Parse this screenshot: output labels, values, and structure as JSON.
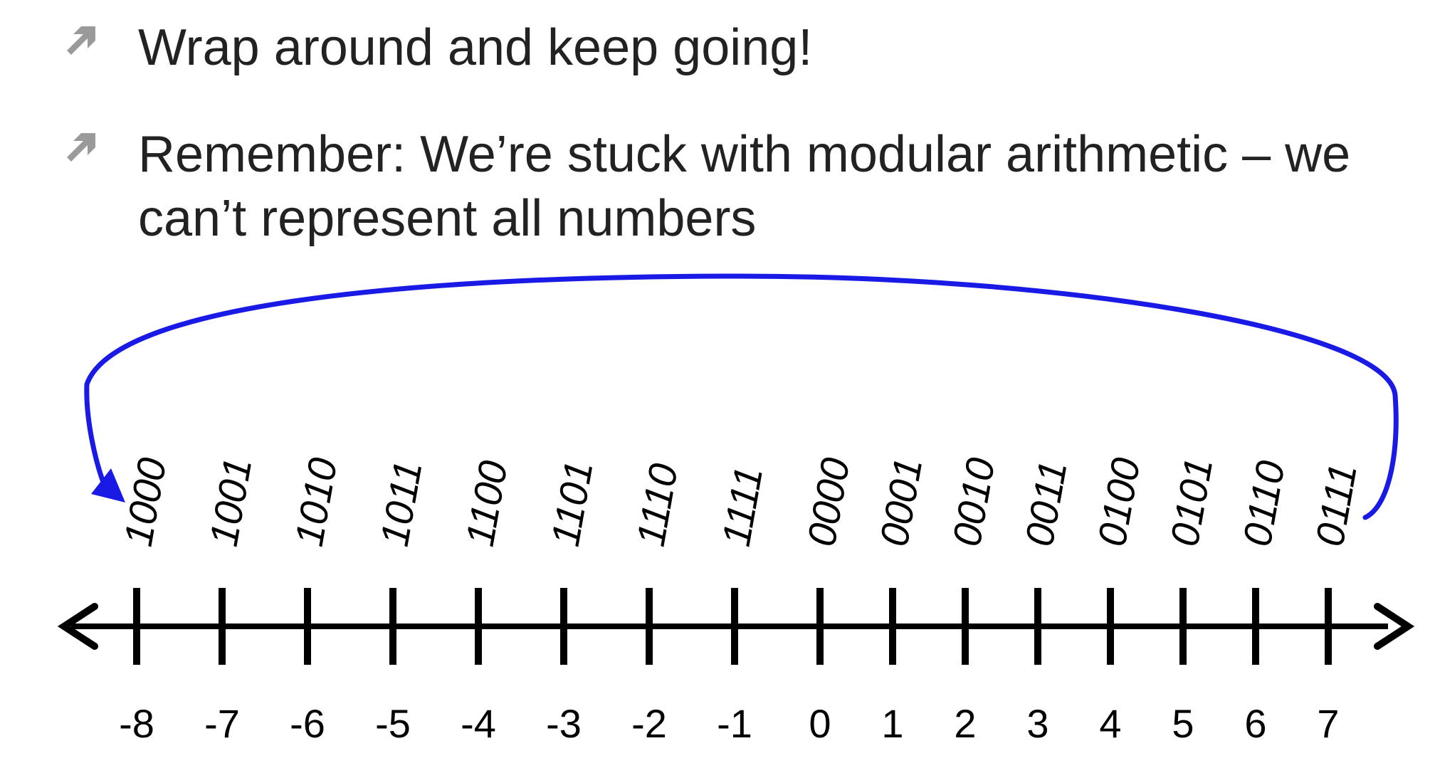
{
  "bullets": [
    {
      "text": "Wrap around and keep going!",
      "icon": "diagonal-arrow-icon"
    },
    {
      "text": "Remember: We’re stuck with modular arithmetic – we\ncan’t represent all numbers",
      "icon": "diagonal-arrow-icon"
    }
  ],
  "colors": {
    "bullet_icon": "#9a9a9a",
    "text": "#222222",
    "wrap_arrow": "#1a1ae6",
    "number_line": "#000000"
  },
  "number_line": {
    "ticks": [
      {
        "value": "-8",
        "binary": "1000"
      },
      {
        "value": "-7",
        "binary": "1001"
      },
      {
        "value": "-6",
        "binary": "1010"
      },
      {
        "value": "-5",
        "binary": "1011"
      },
      {
        "value": "-4",
        "binary": "1100"
      },
      {
        "value": "-3",
        "binary": "1101"
      },
      {
        "value": "-2",
        "binary": "1110"
      },
      {
        "value": "-1",
        "binary": "1111"
      },
      {
        "value": "0",
        "binary": "0000"
      },
      {
        "value": "1",
        "binary": "0001"
      },
      {
        "value": "2",
        "binary": "0010"
      },
      {
        "value": "3",
        "binary": "0011"
      },
      {
        "value": "4",
        "binary": "0100"
      },
      {
        "value": "5",
        "binary": "0101"
      },
      {
        "value": "6",
        "binary": "0110"
      },
      {
        "value": "7",
        "binary": "0111"
      }
    ],
    "wrap_arrow": {
      "from": "0111",
      "to": "1000"
    }
  }
}
